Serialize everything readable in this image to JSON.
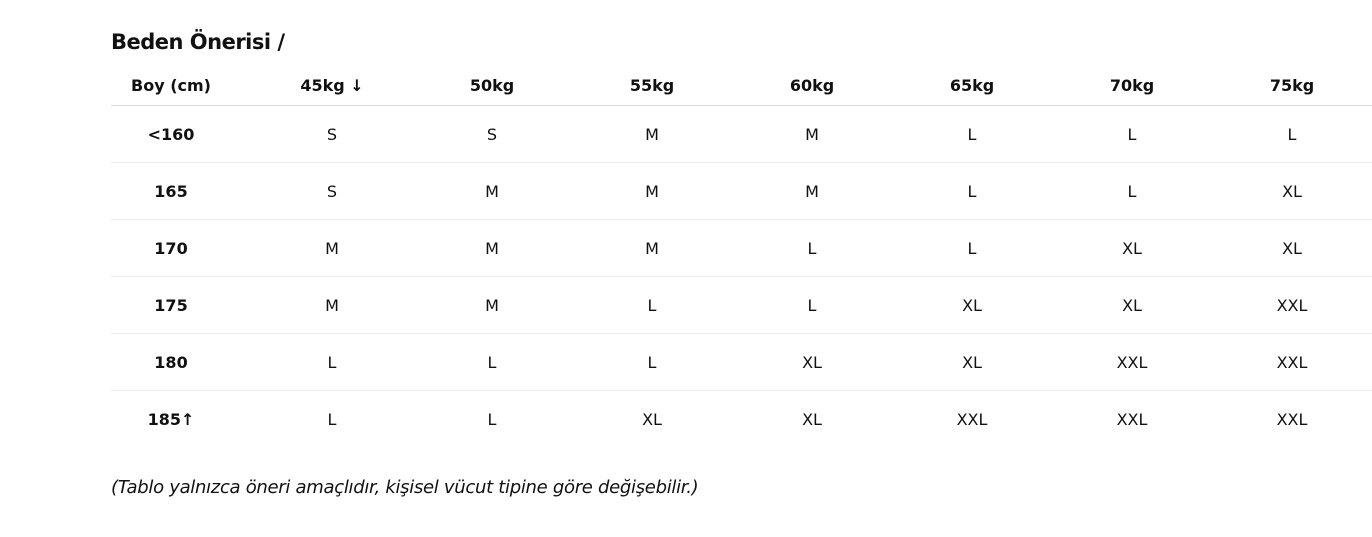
{
  "title": "Beden Önerisi /",
  "table": {
    "headers": [
      "Boy (cm)",
      "45kg ↓",
      "50kg",
      "55kg",
      "60kg",
      "65kg",
      "70kg",
      "75kg"
    ],
    "rows": [
      {
        "height": "<160",
        "sizes": [
          "S",
          "S",
          "M",
          "M",
          "L",
          "L",
          "L"
        ]
      },
      {
        "height": "165",
        "sizes": [
          "S",
          "M",
          "M",
          "M",
          "L",
          "L",
          "XL"
        ]
      },
      {
        "height": "170",
        "sizes": [
          "M",
          "M",
          "M",
          "L",
          "L",
          "XL",
          "XL"
        ]
      },
      {
        "height": "175",
        "sizes": [
          "M",
          "M",
          "L",
          "L",
          "XL",
          "XL",
          "XXL"
        ]
      },
      {
        "height": "180",
        "sizes": [
          "L",
          "L",
          "L",
          "XL",
          "XL",
          "XXL",
          "XXL"
        ]
      },
      {
        "height": "185↑",
        "sizes": [
          "L",
          "L",
          "XL",
          "XL",
          "XXL",
          "XXL",
          "XXL"
        ]
      }
    ]
  },
  "note": "(Tablo yalnızca öneri amaçlıdır, kişisel vücut tipine göre değişebilir.)"
}
